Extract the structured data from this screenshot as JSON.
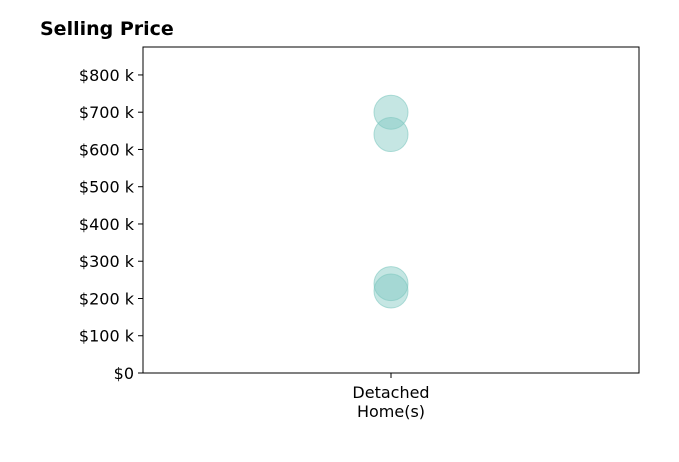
{
  "chart_data": {
    "type": "scatter",
    "title": "Selling Price",
    "xlabel": "",
    "ylabel": "",
    "categories": [
      [
        "Detached",
        "Home(s)"
      ]
    ],
    "ylim": [
      0,
      875000
    ],
    "yticks": [
      0,
      100000,
      200000,
      300000,
      400000,
      500000,
      600000,
      700000,
      800000
    ],
    "yticklabels": [
      "$0",
      "$100 k",
      "$200 k",
      "$300 k",
      "$400 k",
      "$500 k",
      "$600 k",
      "$700 k",
      "$800 k"
    ],
    "series": [
      {
        "category_index": 0,
        "values": [
          700000,
          640000,
          240000,
          220000
        ]
      }
    ],
    "marker_color": "#7ec8c0",
    "marker_opacity": 0.45,
    "grid": false,
    "legend": "none"
  }
}
